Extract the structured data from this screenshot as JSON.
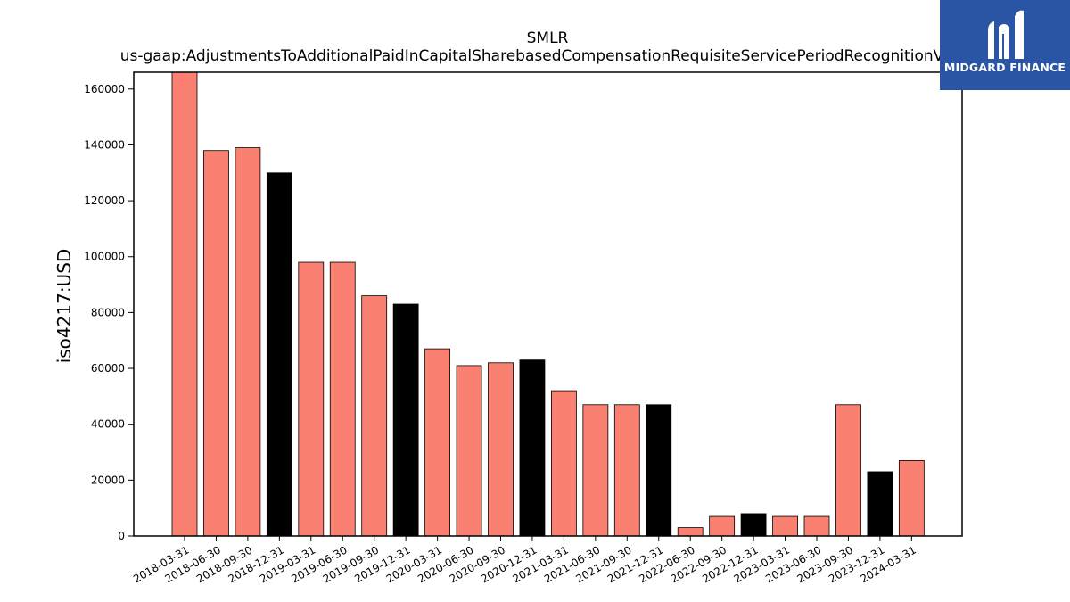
{
  "colors": {
    "primary": "#fa8072",
    "highlight": "#000000",
    "brand": "#2a55a5"
  },
  "logo": {
    "text": "MIDGARD FINANCE",
    "icon": "midgard-m-logo-icon"
  },
  "chart_data": {
    "type": "bar",
    "title": "SMLR",
    "subtitle": "us-gaap:AdjustmentsToAdditionalPaidInCapitalSharebasedCompensationRequisiteServicePeriodRecognitionValue",
    "xlabel": "",
    "ylabel": "iso4217:USD",
    "ylim": [
      0,
      166000
    ],
    "yticks": [
      0,
      20000,
      40000,
      60000,
      80000,
      100000,
      120000,
      140000,
      160000
    ],
    "grid": false,
    "categories": [
      "2018-03-31",
      "2018-06-30",
      "2018-09-30",
      "2018-12-31",
      "2019-03-31",
      "2019-06-30",
      "2019-09-30",
      "2019-12-31",
      "2020-03-31",
      "2020-06-30",
      "2020-09-30",
      "2020-12-31",
      "2021-03-31",
      "2021-06-30",
      "2021-09-30",
      "2021-12-31",
      "2022-06-30",
      "2022-09-30",
      "2022-12-31",
      "2023-03-31",
      "2023-06-30",
      "2023-09-30",
      "2023-12-31",
      "2024-03-31"
    ],
    "values": [
      166000,
      138000,
      139000,
      130000,
      98000,
      98000,
      86000,
      83000,
      67000,
      61000,
      62000,
      63000,
      52000,
      47000,
      47000,
      47000,
      3000,
      7000,
      8000,
      7000,
      7000,
      47000,
      23000,
      27000
    ],
    "bar_colors": [
      "primary",
      "primary",
      "primary",
      "highlight",
      "primary",
      "primary",
      "primary",
      "highlight",
      "primary",
      "primary",
      "primary",
      "highlight",
      "primary",
      "primary",
      "primary",
      "highlight",
      "primary",
      "primary",
      "highlight",
      "primary",
      "primary",
      "primary",
      "highlight",
      "primary"
    ]
  }
}
